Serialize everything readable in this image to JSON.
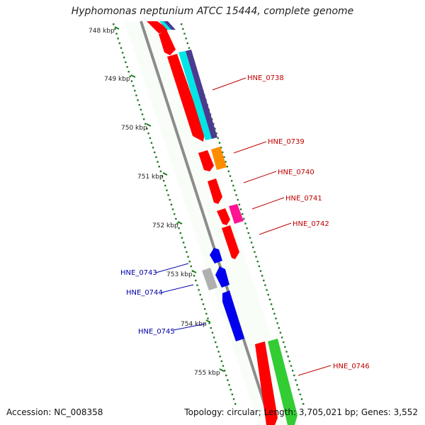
{
  "title": "Hyphomonas neptunium ATCC 15444, complete genome",
  "footer": {
    "accession": "Accession: NC_008358",
    "summary": "Topology: circular; Length: 3,705,021 bp; Genes: 3,552"
  },
  "colors": {
    "backbone": "#8c8c8c",
    "ticks": "#1e7a1e",
    "forward_label": "#c00000",
    "reverse_label": "#0000aa"
  },
  "scale": {
    "unit": "kbp",
    "labels": [
      "748 kbp",
      "749 kbp",
      "750 kbp",
      "751 kbp",
      "752 kbp",
      "753 kbp",
      "754 kbp",
      "755 kbp"
    ]
  },
  "gene_labels": [
    {
      "name": "HNE_0738",
      "strand": "forward"
    },
    {
      "name": "HNE_0739",
      "strand": "forward"
    },
    {
      "name": "HNE_0740",
      "strand": "forward"
    },
    {
      "name": "HNE_0741",
      "strand": "forward"
    },
    {
      "name": "HNE_0742",
      "strand": "forward"
    },
    {
      "name": "HNE_0743",
      "strand": "reverse"
    },
    {
      "name": "HNE_0744",
      "strand": "reverse"
    },
    {
      "name": "HNE_0745",
      "strand": "reverse"
    },
    {
      "name": "HNE_0746",
      "strand": "forward"
    }
  ],
  "features": [
    {
      "track": "cds",
      "strand": "forward",
      "color": "#ff0000"
    },
    {
      "track": "trna",
      "strand": "forward",
      "color": "#00e5e5"
    },
    {
      "track": "rrna",
      "strand": "forward",
      "color": "#4b3a8f"
    },
    {
      "track": "misc",
      "strand": "forward",
      "color": "#ff8c00"
    },
    {
      "track": "misc",
      "strand": "forward",
      "color": "#ff1493"
    },
    {
      "track": "cds",
      "strand": "reverse",
      "color": "#0000ee"
    },
    {
      "track": "pseudo",
      "strand": "reverse",
      "color": "#b0b0b0"
    },
    {
      "track": "other",
      "strand": "forward",
      "color": "#33cc33"
    }
  ]
}
